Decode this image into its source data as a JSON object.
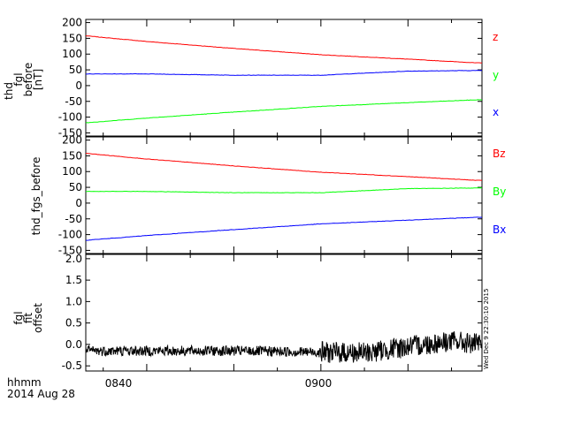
{
  "chart_data": [
    {
      "type": "line",
      "ylabel": [
        "thd",
        "fgl",
        "before",
        "[nT]"
      ],
      "ylim": [
        -160,
        210
      ],
      "yticks": [
        -150,
        -100,
        -50,
        0,
        50,
        100,
        150,
        200
      ],
      "ytick_labels": [
        "-150",
        "-100",
        "-50",
        "0",
        "50",
        "100",
        "150",
        "200"
      ],
      "x": [
        "08:33",
        "08:40",
        "08:50",
        "09:00",
        "09:10",
        "09:18"
      ],
      "series": [
        {
          "name": "z",
          "color": "#ff0000",
          "values": [
            158,
            140,
            118,
            98,
            84,
            72
          ]
        },
        {
          "name": "y",
          "color": "#0000ff",
          "values": [
            37,
            37,
            33,
            33,
            46,
            48
          ]
        },
        {
          "name": "x",
          "color": "#00ff00",
          "values": [
            -118,
            -103,
            -84,
            -66,
            -54,
            -45
          ]
        }
      ]
    },
    {
      "type": "line",
      "ylabel": [
        "thd_fgs_before"
      ],
      "ylim": [
        -160,
        210
      ],
      "yticks": [
        -150,
        -100,
        -50,
        0,
        50,
        100,
        150,
        200
      ],
      "ytick_labels": [
        "-150",
        "-100",
        "-50",
        "0",
        "50",
        "100",
        "150",
        "200"
      ],
      "x": [
        "08:33",
        "08:40",
        "08:50",
        "09:00",
        "09:10",
        "09:18"
      ],
      "series": [
        {
          "name": "Bz",
          "color": "#ff0000",
          "values": [
            158,
            140,
            118,
            98,
            84,
            72
          ]
        },
        {
          "name": "By",
          "color": "#00ff00",
          "values": [
            37,
            37,
            33,
            33,
            46,
            48
          ]
        },
        {
          "name": "Bx",
          "color": "#0000ff",
          "values": [
            -118,
            -103,
            -84,
            -66,
            -54,
            -45
          ]
        }
      ]
    },
    {
      "type": "line",
      "ylabel": [
        "fgl",
        "fit",
        "offset"
      ],
      "ylim": [
        -0.62,
        2.1
      ],
      "yticks": [
        -0.5,
        0.0,
        0.5,
        1.0,
        1.5,
        2.0
      ],
      "ytick_labels": [
        "-0.5",
        "0.0",
        "0.5",
        "1.0",
        "1.5",
        "2.0"
      ],
      "x": [
        "08:33",
        "08:40",
        "08:50",
        "09:00",
        "09:05",
        "09:10",
        "09:15",
        "09:18"
      ],
      "series": [
        {
          "color": "#000000",
          "values": [
            -0.15,
            -0.15,
            -0.15,
            -0.18,
            -0.2,
            -0.05,
            0.08,
            0.0
          ]
        }
      ]
    }
  ],
  "xticks": [
    "0840",
    "0900"
  ],
  "xlabel": [
    "hhmm",
    "2014 Aug 28"
  ],
  "side_stamp": "Wed Dec 9 22:30:10 2015"
}
